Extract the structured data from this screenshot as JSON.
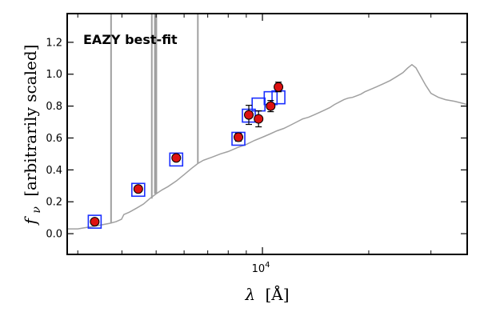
{
  "chart_data": {
    "type": "scatter",
    "title": "",
    "annotation": "EAZY best-fit",
    "annotation_color": "#ee1111",
    "xlabel_var": "λ",
    "xlabel_unit": "[Å]",
    "ylabel_var": "f",
    "ylabel_sub": "ν",
    "ylabel_unit": "[arbitrarily scaled]",
    "xscale": "log",
    "xlim": [
      2800,
      38000
    ],
    "ylim": [
      -0.13,
      1.38
    ],
    "xticks": [
      {
        "value": 10000,
        "base": "10",
        "exp": "4"
      }
    ],
    "xminor": [
      3000,
      4000,
      5000,
      6000,
      7000,
      8000,
      9000,
      20000,
      30000
    ],
    "yticks": [
      0.0,
      0.2,
      0.4,
      0.6,
      0.8,
      1.0,
      1.2
    ],
    "yticklabels": [
      "0.0",
      "0.2",
      "0.4",
      "0.6",
      "0.8",
      "1.0",
      "1.2"
    ],
    "grid": false,
    "colors": {
      "sed": "#a0a0a0",
      "model_box": "#1a2fff",
      "point_fill": "#dd1111",
      "point_edge": "#000000"
    },
    "series": [
      {
        "name": "EAZY best-fit",
        "kind": "line",
        "points": [
          [
            2800,
            0.03
          ],
          [
            3000,
            0.03
          ],
          [
            3300,
            0.045
          ],
          [
            3500,
            0.055
          ],
          [
            3700,
            0.065
          ],
          [
            3850,
            0.075
          ],
          [
            3990,
            0.09
          ],
          [
            4050,
            0.12
          ],
          [
            4200,
            0.135
          ],
          [
            4400,
            0.16
          ],
          [
            4600,
            0.185
          ],
          [
            4800,
            0.22
          ],
          [
            5000,
            0.25
          ],
          [
            5200,
            0.275
          ],
          [
            5400,
            0.295
          ],
          [
            5700,
            0.33
          ],
          [
            6000,
            0.37
          ],
          [
            6300,
            0.41
          ],
          [
            6563,
            0.44
          ],
          [
            6800,
            0.46
          ],
          [
            7200,
            0.48
          ],
          [
            7600,
            0.5
          ],
          [
            8000,
            0.515
          ],
          [
            8500,
            0.54
          ],
          [
            9000,
            0.56
          ],
          [
            9500,
            0.585
          ],
          [
            10000,
            0.605
          ],
          [
            10500,
            0.625
          ],
          [
            11000,
            0.645
          ],
          [
            11500,
            0.66
          ],
          [
            12000,
            0.68
          ],
          [
            12500,
            0.7
          ],
          [
            13000,
            0.72
          ],
          [
            13500,
            0.73
          ],
          [
            14000,
            0.745
          ],
          [
            14500,
            0.76
          ],
          [
            15000,
            0.775
          ],
          [
            15500,
            0.79
          ],
          [
            16000,
            0.81
          ],
          [
            16500,
            0.825
          ],
          [
            17000,
            0.84
          ],
          [
            17500,
            0.85
          ],
          [
            18000,
            0.855
          ],
          [
            18500,
            0.865
          ],
          [
            19000,
            0.875
          ],
          [
            19500,
            0.89
          ],
          [
            20000,
            0.9
          ],
          [
            21000,
            0.92
          ],
          [
            22000,
            0.94
          ],
          [
            23000,
            0.96
          ],
          [
            24000,
            0.985
          ],
          [
            25000,
            1.01
          ],
          [
            25800,
            1.04
          ],
          [
            26500,
            1.06
          ],
          [
            27200,
            1.04
          ],
          [
            28000,
            0.99
          ],
          [
            29000,
            0.93
          ],
          [
            30000,
            0.88
          ],
          [
            31500,
            0.855
          ],
          [
            33000,
            0.84
          ],
          [
            35000,
            0.83
          ],
          [
            36500,
            0.82
          ],
          [
            38000,
            0.81
          ]
        ],
        "emission_lines": [
          {
            "x": 3727,
            "peak": 1.38
          },
          {
            "x": 4861,
            "peak": 1.38
          },
          {
            "x": 4959,
            "peak": 1.38
          },
          {
            "x": 5007,
            "peak": 1.38
          },
          {
            "x": 6563,
            "peak": 1.38
          }
        ]
      },
      {
        "name": "Model photometry",
        "kind": "box",
        "x": [
          3350,
          4450,
          5700,
          8550,
          9150,
          9750,
          10550,
          11100
        ],
        "y": [
          0.075,
          0.275,
          0.465,
          0.595,
          0.74,
          0.81,
          0.85,
          0.855
        ]
      },
      {
        "name": "Observed photometry",
        "kind": "errorbar",
        "x": [
          3350,
          4450,
          5700,
          8550,
          9150,
          9750,
          10550,
          11100
        ],
        "y": [
          0.075,
          0.28,
          0.475,
          0.605,
          0.745,
          0.72,
          0.8,
          0.92
        ],
        "yerr": [
          0.01,
          0.015,
          0.015,
          0.025,
          0.06,
          0.05,
          0.035,
          0.03
        ]
      }
    ]
  }
}
